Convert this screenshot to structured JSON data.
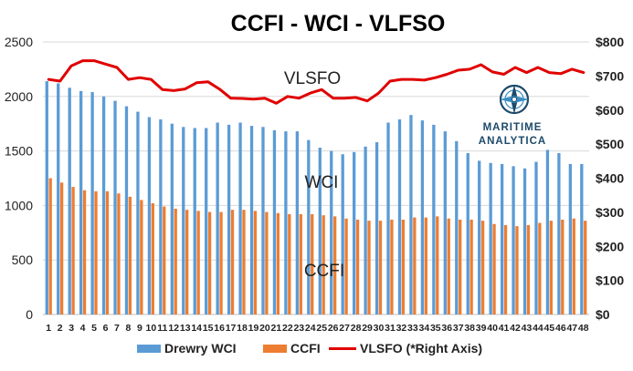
{
  "chart_data": {
    "type": "bar+line",
    "title": "CCFI - WCI - VLFSO",
    "x": [
      1,
      2,
      3,
      4,
      5,
      6,
      7,
      8,
      9,
      10,
      11,
      12,
      13,
      14,
      15,
      16,
      17,
      18,
      19,
      20,
      21,
      22,
      23,
      24,
      25,
      26,
      27,
      28,
      29,
      30,
      31,
      32,
      33,
      34,
      35,
      36,
      37,
      38,
      39,
      40,
      41,
      42,
      43,
      44,
      45,
      46,
      47,
      48
    ],
    "series": [
      {
        "name": "Drewry WCI",
        "type": "bar",
        "axis": "left",
        "color": "#5b9bd5",
        "values": [
          2140,
          2120,
          2080,
          2050,
          2040,
          2000,
          1960,
          1910,
          1860,
          1810,
          1790,
          1750,
          1720,
          1710,
          1710,
          1760,
          1740,
          1760,
          1730,
          1720,
          1690,
          1680,
          1680,
          1600,
          1530,
          1500,
          1470,
          1490,
          1540,
          1580,
          1760,
          1790,
          1830,
          1780,
          1740,
          1680,
          1590,
          1480,
          1410,
          1390,
          1380,
          1360,
          1340,
          1400,
          1510,
          1480,
          1380,
          1380
        ]
      },
      {
        "name": "CCFI",
        "type": "bar",
        "axis": "left",
        "color": "#ed7d31",
        "values": [
          1250,
          1210,
          1170,
          1140,
          1130,
          1130,
          1110,
          1080,
          1050,
          1020,
          990,
          970,
          960,
          950,
          940,
          940,
          960,
          960,
          950,
          940,
          930,
          920,
          920,
          920,
          910,
          900,
          880,
          870,
          860,
          860,
          870,
          870,
          890,
          890,
          900,
          880,
          870,
          870,
          860,
          830,
          820,
          810,
          820,
          840,
          860,
          870,
          880,
          860
        ]
      },
      {
        "name": "VLSFO (*Right Axis)",
        "type": "line",
        "axis": "right",
        "color": "#e00000",
        "values": [
          690,
          685,
          730,
          745,
          745,
          735,
          725,
          690,
          695,
          690,
          660,
          657,
          662,
          680,
          683,
          662,
          635,
          634,
          632,
          635,
          620,
          640,
          635,
          650,
          660,
          635,
          635,
          637,
          627,
          650,
          685,
          690,
          690,
          688,
          695,
          705,
          717,
          720,
          733,
          712,
          705,
          725,
          710,
          725,
          710,
          707,
          720,
          710
        ]
      }
    ],
    "y_left": {
      "min": 0,
      "max": 2500,
      "ticks": [
        0,
        500,
        1000,
        1500,
        2000,
        2500
      ]
    },
    "y_right": {
      "min": 0,
      "max": 800,
      "ticks": [
        "$0",
        "$100",
        "$200",
        "$300",
        "$400",
        "$500",
        "$600",
        "$700",
        "$800"
      ]
    },
    "annotations": [
      "VLSFO",
      "WCI",
      "CCFI"
    ],
    "legend": [
      "Drewry WCI",
      "CCFI",
      "VLSFO (*Right Axis)"
    ],
    "legend_position": "bottom"
  },
  "logo": {
    "line1": "MARITIME",
    "line2": "ANALYTICA"
  }
}
